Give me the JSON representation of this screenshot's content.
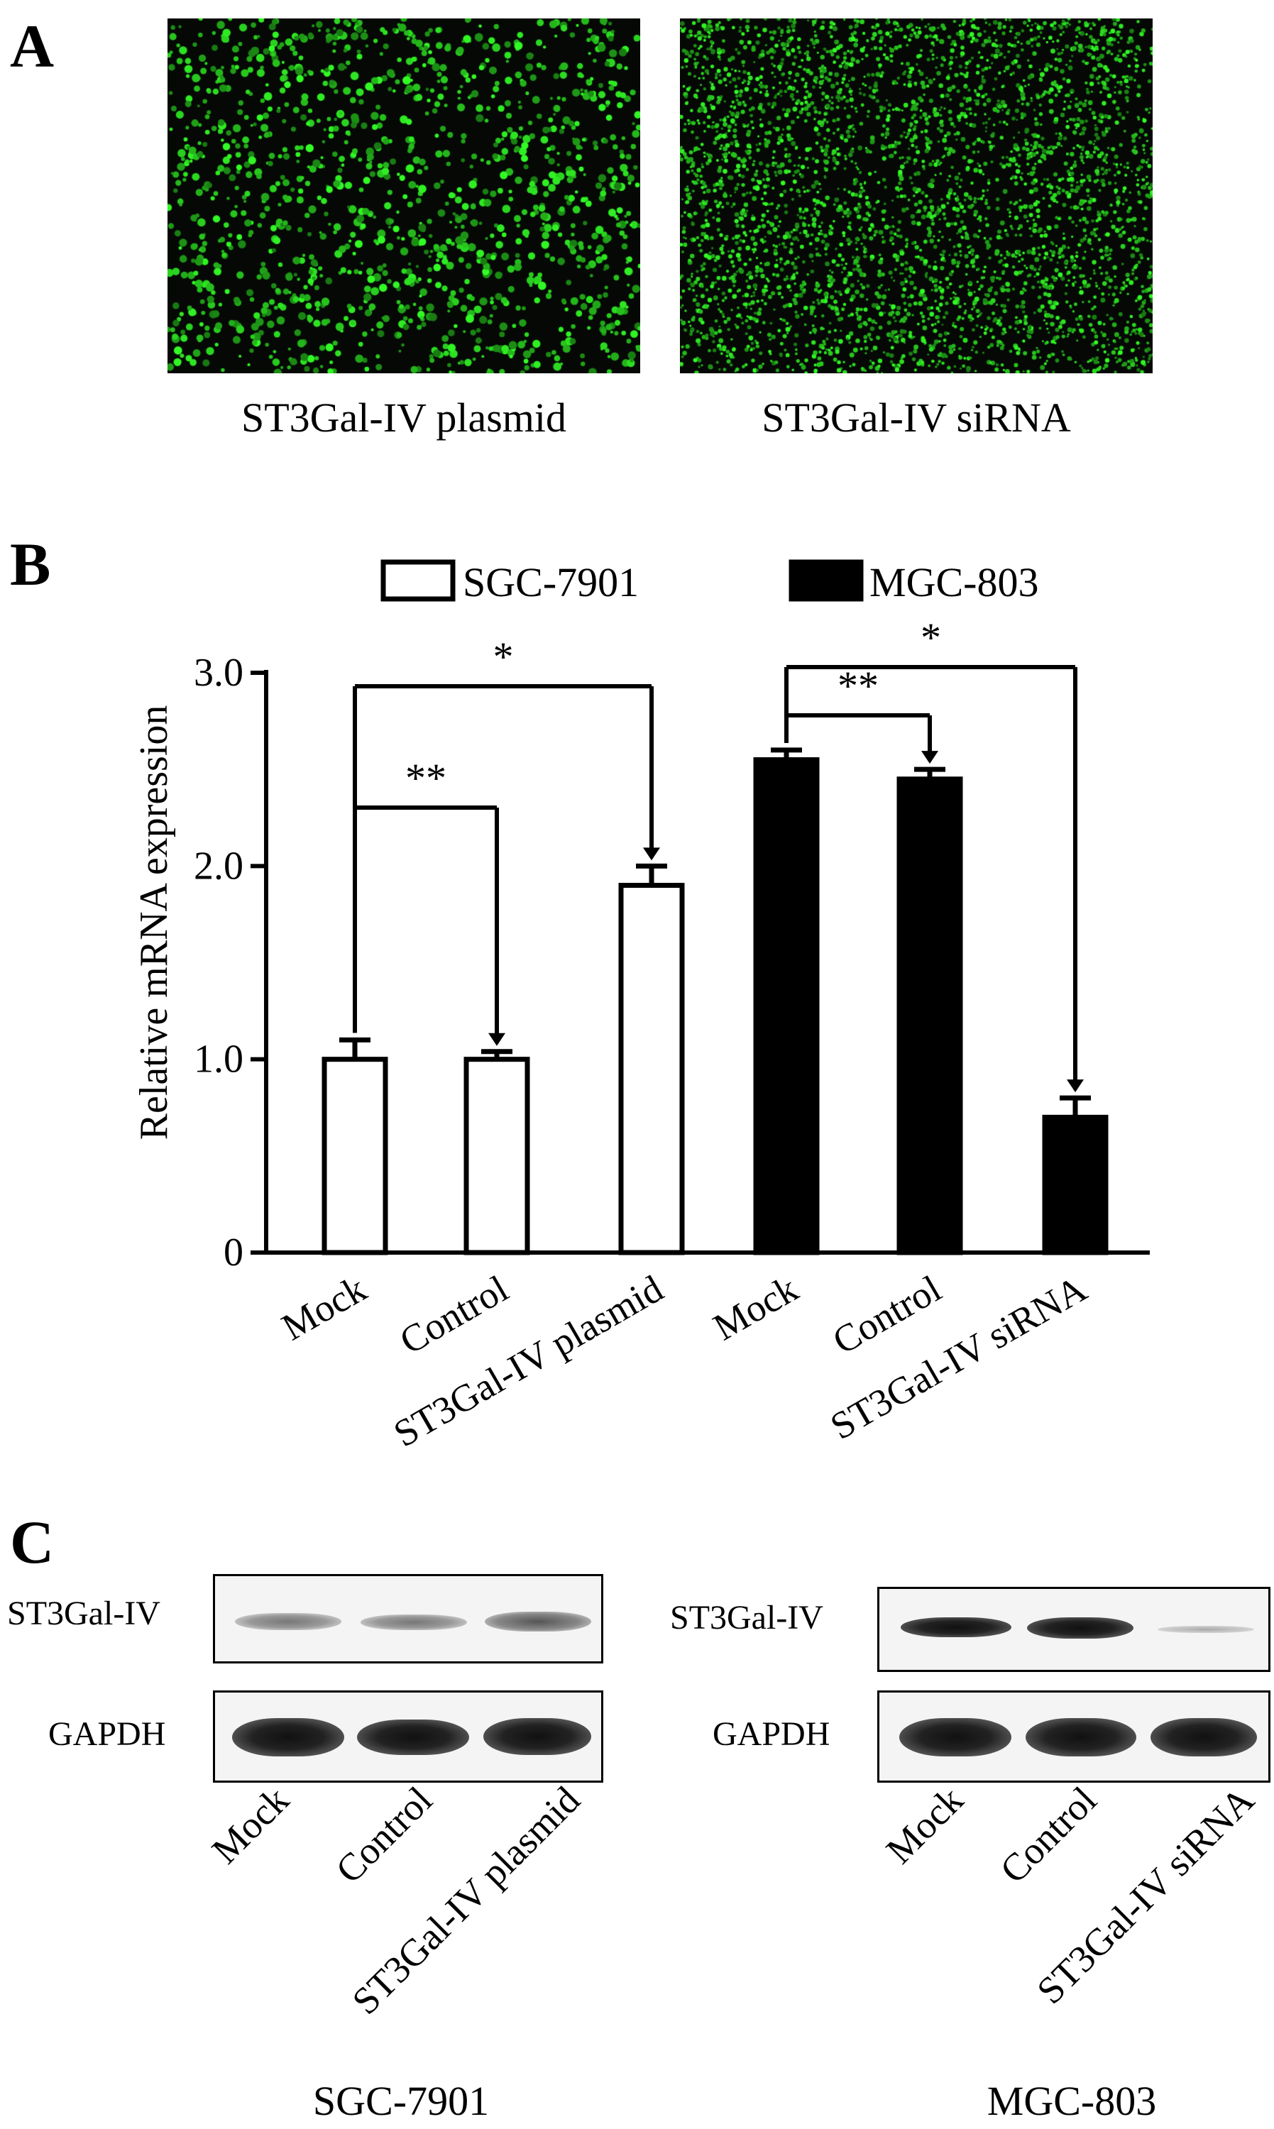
{
  "panel_a": {
    "letter": "A",
    "images": [
      {
        "caption": "ST3Gal-IV plasmid"
      },
      {
        "caption": "ST3Gal-IV siRNA"
      }
    ]
  },
  "panel_b": {
    "letter": "B",
    "chart_data": {
      "type": "bar",
      "ylabel": "Relative mRNA expression",
      "ylim": [
        0,
        3.0
      ],
      "yticks": [
        "0",
        "1.0",
        "2.0",
        "3.0"
      ],
      "categories": [
        "Mock",
        "Control",
        "ST3Gal-IV plasmid",
        "Mock",
        "Control",
        "ST3Gal-IV siRNA"
      ],
      "series": [
        {
          "name": "SGC-7901",
          "fill": "#ffffff",
          "values": [
            1.0,
            1.0,
            1.9,
            null,
            null,
            null
          ],
          "errors": [
            0.1,
            0.04,
            0.1,
            null,
            null,
            null
          ]
        },
        {
          "name": "MGC-803",
          "fill": "#000000",
          "values": [
            null,
            null,
            null,
            2.55,
            2.45,
            0.7
          ],
          "errors": [
            null,
            null,
            null,
            0.05,
            0.05,
            0.1
          ]
        }
      ],
      "legend_position": "top",
      "significance": [
        {
          "from": 0,
          "to": 1,
          "label": "**"
        },
        {
          "from": 0,
          "to": 2,
          "label": "*"
        },
        {
          "from": 3,
          "to": 4,
          "label": "**"
        },
        {
          "from": 3,
          "to": 5,
          "label": "*"
        }
      ]
    }
  },
  "panel_c": {
    "letter": "C",
    "left": {
      "cell_line": "SGC-7901",
      "rows": [
        "ST3Gal-IV",
        "GAPDH"
      ],
      "lanes": [
        "Mock",
        "Control",
        "ST3Gal-IV plasmid"
      ]
    },
    "right": {
      "cell_line": "MGC-803",
      "rows": [
        "ST3Gal-IV",
        "GAPDH"
      ],
      "lanes": [
        "Mock",
        "Control",
        "ST3Gal-IV siRNA"
      ]
    }
  }
}
